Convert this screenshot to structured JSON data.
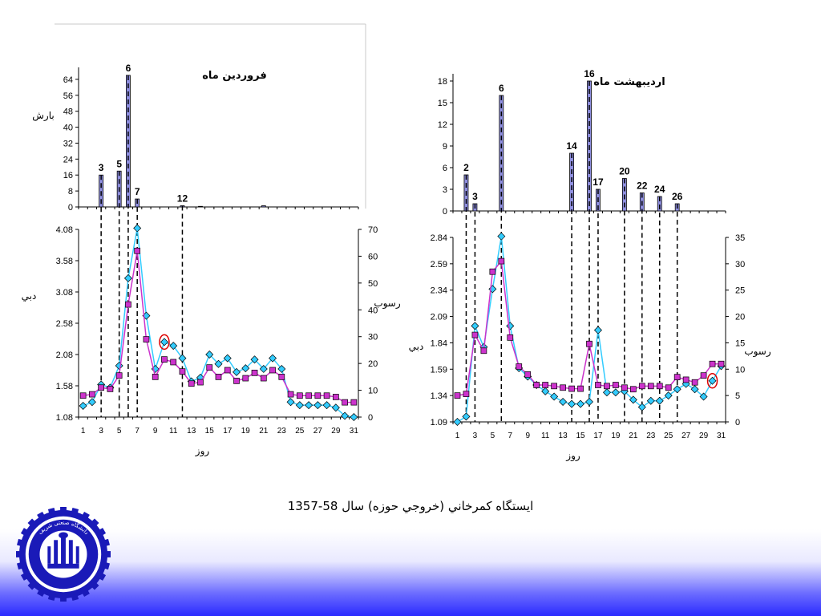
{
  "caption": "ايستگاه كمرخاني (خروجي حوزه) سال 58-1357",
  "logo_text": "دانشگاه صنعتی شریف",
  "colors": {
    "bar": "#8f8fe0",
    "discharge": "#33ccff",
    "sediment": "#cc33cc",
    "circle": "#dd0000",
    "axis": "#000000"
  },
  "chart_data": [
    {
      "type": "bar",
      "title": "فروردين ماه",
      "ylabel": "بارش",
      "ylim": [
        0,
        70
      ],
      "yticks": [
        0,
        8,
        16,
        24,
        32,
        40,
        48,
        56,
        64
      ],
      "x": [
        1,
        2,
        3,
        4,
        5,
        6,
        7,
        8,
        9,
        10,
        11,
        12,
        13,
        14,
        15,
        16,
        17,
        18,
        19,
        20,
        21,
        22,
        23,
        24,
        25,
        26,
        27,
        28,
        29,
        30,
        31
      ],
      "values": [
        0,
        0,
        16,
        0,
        18,
        66,
        4,
        0,
        0,
        0,
        0,
        0.6,
        0,
        0.3,
        0,
        0,
        0,
        0,
        0,
        0,
        0.6,
        0,
        0,
        0,
        0,
        0,
        0,
        0,
        0,
        0,
        0
      ],
      "data_labels": [
        {
          "x": 3,
          "text": "3"
        },
        {
          "x": 5,
          "text": "5"
        },
        {
          "x": 6,
          "text": "6"
        },
        {
          "x": 7,
          "text": "7"
        },
        {
          "x": 12,
          "text": "12"
        }
      ]
    },
    {
      "type": "line",
      "xlabel": "روز",
      "ylabel": "دبي",
      "y2label": "رسوب",
      "ylim": [
        1.08,
        4.08
      ],
      "yticks": [
        1.08,
        1.58,
        2.08,
        2.58,
        3.08,
        3.58,
        4.08
      ],
      "y2lim": [
        0,
        70
      ],
      "y2ticks": [
        0,
        10,
        20,
        30,
        40,
        50,
        60,
        70
      ],
      "xticks": [
        1,
        3,
        5,
        7,
        9,
        11,
        13,
        15,
        17,
        19,
        21,
        23,
        25,
        27,
        29,
        31
      ],
      "x": [
        1,
        2,
        3,
        4,
        5,
        6,
        7,
        8,
        9,
        10,
        11,
        12,
        13,
        14,
        15,
        16,
        17,
        18,
        19,
        20,
        21,
        22,
        23,
        24,
        25,
        26,
        27,
        28,
        29,
        30,
        31
      ],
      "series": [
        {
          "axis": "left",
          "marker": "diamond",
          "values": [
            1.26,
            1.32,
            1.6,
            1.55,
            1.9,
            3.3,
            4.1,
            2.7,
            1.85,
            2.28,
            2.22,
            2.02,
            1.65,
            1.71,
            2.08,
            1.93,
            2.02,
            1.8,
            1.86,
            2.0,
            1.85,
            2.02,
            1.85,
            1.32,
            1.27,
            1.27,
            1.27,
            1.27,
            1.23,
            1.1,
            1.08
          ]
        },
        {
          "axis": "right",
          "marker": "square",
          "values": [
            8,
            8.5,
            11,
            10.5,
            15.5,
            42,
            62,
            29,
            15,
            21.5,
            20.5,
            17,
            12.5,
            13,
            18.5,
            15,
            17.5,
            13.5,
            14.5,
            16.5,
            14.5,
            17.5,
            15,
            8.5,
            8,
            8,
            8,
            8,
            7.5,
            5.5,
            5.5
          ]
        }
      ],
      "circled_x": 10,
      "dashed_days": [
        3,
        5,
        6,
        7,
        12
      ]
    },
    {
      "type": "bar",
      "title": "ارديبهشت ماه",
      "ylim": [
        0,
        19
      ],
      "yticks": [
        0,
        3,
        6,
        9,
        12,
        15,
        18
      ],
      "x": [
        1,
        2,
        3,
        4,
        5,
        6,
        7,
        8,
        9,
        10,
        11,
        12,
        13,
        14,
        15,
        16,
        17,
        18,
        19,
        20,
        21,
        22,
        23,
        24,
        25,
        26,
        27,
        28,
        29,
        30,
        31
      ],
      "values": [
        0,
        5,
        1,
        0,
        0,
        16,
        0,
        0,
        0,
        0,
        0,
        0,
        0,
        8,
        0,
        18,
        3,
        0,
        0,
        4.5,
        0,
        2.5,
        0,
        2,
        0,
        1,
        0,
        0,
        0,
        0,
        0
      ],
      "data_labels": [
        {
          "x": 2,
          "text": "2"
        },
        {
          "x": 3,
          "text": "3"
        },
        {
          "x": 6,
          "text": "6"
        },
        {
          "x": 14,
          "text": "14"
        },
        {
          "x": 16,
          "text": "16"
        },
        {
          "x": 17,
          "text": "17"
        },
        {
          "x": 20,
          "text": "20"
        },
        {
          "x": 22,
          "text": "22"
        },
        {
          "x": 24,
          "text": "24"
        },
        {
          "x": 26,
          "text": "26"
        }
      ]
    },
    {
      "type": "line",
      "xlabel": "روز",
      "ylabel": "دبي",
      "y2label": "رسوب",
      "ylim": [
        1.09,
        2.84
      ],
      "yticks": [
        1.09,
        1.34,
        1.59,
        1.84,
        2.09,
        2.34,
        2.59,
        2.84
      ],
      "y2lim": [
        0,
        35
      ],
      "y2ticks": [
        0,
        5,
        10,
        15,
        20,
        25,
        30,
        35
      ],
      "xticks": [
        1,
        3,
        5,
        7,
        9,
        11,
        13,
        15,
        17,
        19,
        21,
        23,
        25,
        27,
        29,
        31
      ],
      "x": [
        1,
        2,
        3,
        4,
        5,
        6,
        7,
        8,
        9,
        10,
        11,
        12,
        13,
        14,
        15,
        16,
        17,
        18,
        19,
        20,
        21,
        22,
        23,
        24,
        25,
        26,
        27,
        28,
        29,
        30,
        31
      ],
      "series": [
        {
          "axis": "left",
          "marker": "diamond",
          "values": [
            1.09,
            1.14,
            2.0,
            1.8,
            2.35,
            2.85,
            2.0,
            1.6,
            1.52,
            1.44,
            1.38,
            1.33,
            1.28,
            1.26,
            1.26,
            1.28,
            1.96,
            1.37,
            1.37,
            1.38,
            1.3,
            1.23,
            1.29,
            1.29,
            1.34,
            1.4,
            1.45,
            1.4,
            1.33,
            1.48,
            1.62
          ]
        },
        {
          "axis": "right",
          "marker": "square",
          "values": [
            5,
            5.3,
            16.5,
            13.5,
            28.5,
            30.5,
            16,
            10.5,
            9,
            7,
            7,
            6.8,
            6.5,
            6.3,
            6.3,
            14.8,
            7,
            6.8,
            7,
            6.5,
            6.2,
            6.8,
            6.8,
            6.8,
            6.5,
            8.5,
            8,
            7.5,
            8.8,
            11,
            11
          ]
        }
      ],
      "circled_x": 30,
      "dashed_days": [
        2,
        3,
        6,
        14,
        16,
        17,
        20,
        22,
        24,
        26
      ]
    }
  ]
}
